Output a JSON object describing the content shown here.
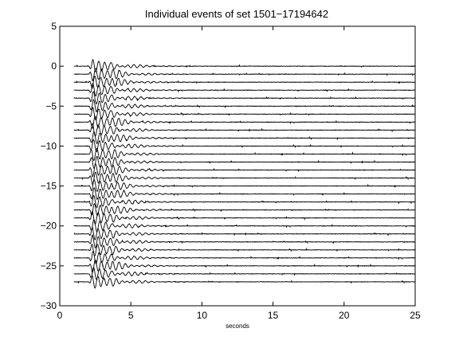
{
  "chart_data": {
    "type": "line",
    "title": "Individual events of set 1501−17194642",
    "xlabel": "seconds",
    "ylabel": "",
    "xlim": [
      0,
      25
    ],
    "ylim": [
      -30,
      5
    ],
    "xticks": [
      0,
      5,
      10,
      15,
      20,
      25
    ],
    "xtick_labels": [
      "0",
      "5",
      "10",
      "15",
      "20",
      "25"
    ],
    "yticks": [
      5,
      0,
      -5,
      -10,
      -15,
      -20,
      -25,
      -30
    ],
    "ytick_labels": [
      "5",
      "0",
      "−5",
      "−10",
      "−15",
      "−20",
      "−25",
      "−30"
    ],
    "grid": false,
    "trace_count": 28,
    "trace_offsets": [
      0,
      -1,
      -2,
      -3,
      -4,
      -5,
      -6,
      -7,
      -8,
      -9,
      -10,
      -11,
      -12,
      -13,
      -14,
      -15,
      -16,
      -17,
      -18,
      -19,
      -20,
      -21,
      -22,
      -23,
      -24,
      -25,
      -26,
      -27
    ],
    "trace_start_s": 1.0,
    "trace_end_s": 25.0,
    "main_arrival_s": 2.3,
    "secondary_arrival_s": 3.7,
    "line_color": "#000000"
  }
}
